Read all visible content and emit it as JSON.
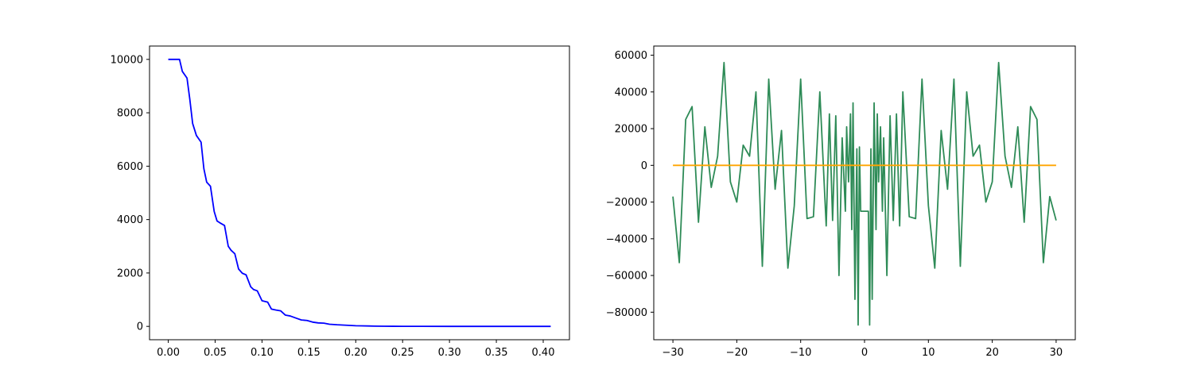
{
  "chart_data": [
    {
      "type": "line",
      "title": "",
      "xlabel": "",
      "ylabel": "",
      "xlim": [
        -0.02,
        0.428
      ],
      "ylim": [
        -500,
        10500
      ],
      "xticks": [
        0.0,
        0.05,
        0.1,
        0.15,
        0.2,
        0.25,
        0.3,
        0.35,
        0.4
      ],
      "xtick_labels": [
        "0.00",
        "0.05",
        "0.10",
        "0.15",
        "0.20",
        "0.25",
        "0.30",
        "0.35",
        "0.40"
      ],
      "yticks": [
        0,
        2000,
        4000,
        6000,
        8000,
        10000
      ],
      "ytick_labels": [
        "0",
        "2000",
        "4000",
        "6000",
        "8000",
        "10000"
      ],
      "grid": false,
      "series": [
        {
          "color": "#0000ff",
          "x": [
            0.0,
            0.012,
            0.015,
            0.02,
            0.023,
            0.026,
            0.03,
            0.035,
            0.038,
            0.041,
            0.045,
            0.049,
            0.052,
            0.055,
            0.06,
            0.064,
            0.067,
            0.071,
            0.075,
            0.079,
            0.083,
            0.088,
            0.091,
            0.095,
            0.1,
            0.106,
            0.11,
            0.115,
            0.12,
            0.125,
            0.13,
            0.137,
            0.142,
            0.148,
            0.154,
            0.16,
            0.166,
            0.172,
            0.18,
            0.186,
            0.194,
            0.2,
            0.206,
            0.214,
            0.22,
            0.23,
            0.24,
            0.25,
            0.27,
            0.3,
            0.35,
            0.408
          ],
          "y": [
            10000,
            10000,
            9550,
            9300,
            8500,
            7600,
            7150,
            6900,
            5900,
            5400,
            5250,
            4300,
            3950,
            3880,
            3780,
            3000,
            2850,
            2720,
            2150,
            1990,
            1930,
            1480,
            1380,
            1330,
            960,
            910,
            650,
            610,
            580,
            420,
            390,
            300,
            240,
            220,
            160,
            130,
            120,
            80,
            60,
            50,
            35,
            25,
            20,
            15,
            10,
            6,
            4,
            2,
            1,
            0,
            0,
            0
          ]
        }
      ]
    },
    {
      "type": "line",
      "title": "",
      "xlabel": "",
      "ylabel": "",
      "xlim": [
        -33,
        33
      ],
      "ylim": [
        -95000,
        65000
      ],
      "xticks": [
        -30,
        -20,
        -10,
        0,
        10,
        20,
        30
      ],
      "xtick_labels": [
        "−30",
        "−20",
        "−10",
        "0",
        "10",
        "20",
        "30"
      ],
      "yticks": [
        -80000,
        -60000,
        -40000,
        -20000,
        0,
        20000,
        40000,
        60000
      ],
      "ytick_labels": [
        "−80000",
        "−60000",
        "−40000",
        "−20000",
        "0",
        "20000",
        "40000",
        "60000"
      ],
      "grid": false,
      "series": [
        {
          "color": "#2e8b57",
          "x": [
            -30,
            -29,
            -28,
            -27,
            -26,
            -25,
            -24,
            -23,
            -22,
            -21,
            -20,
            -19,
            -18,
            -17,
            -16,
            -15,
            -14,
            -13,
            -12,
            -11,
            -10,
            -9,
            -8,
            -7,
            -6,
            -5.5,
            -5,
            -4.5,
            -4,
            -3.5,
            -3,
            -2.8,
            -2.5,
            -2.2,
            -2.0,
            -1.8,
            -1.5,
            -1.2,
            -1.0,
            -0.8,
            -0.6,
            0,
            0.6,
            0.8,
            1.0,
            1.2,
            1.5,
            1.8,
            2.0,
            2.2,
            2.5,
            2.8,
            3,
            3.5,
            4,
            4.5,
            5,
            5.5,
            6,
            7,
            8,
            9,
            10,
            11,
            12,
            13,
            14,
            15,
            16,
            17,
            18,
            19,
            20,
            21,
            22,
            23,
            24,
            25,
            26,
            27,
            28,
            29,
            30
          ],
          "y": [
            -17000,
            -53000,
            25000,
            32000,
            -31000,
            21000,
            -12000,
            5000,
            56000,
            -9000,
            -20000,
            11000,
            5000,
            40000,
            -55000,
            47000,
            -13000,
            19000,
            -56000,
            -22000,
            47000,
            -29000,
            -28000,
            40000,
            -33000,
            28000,
            -30000,
            27000,
            -60000,
            15000,
            -25000,
            21000,
            -9000,
            28000,
            -35000,
            34000,
            -73000,
            9000,
            -87000,
            10000,
            -25000,
            -25000,
            -25000,
            -87000,
            9000,
            -73000,
            34000,
            -35000,
            28000,
            -9000,
            21000,
            -25000,
            15000,
            -60000,
            27000,
            -30000,
            28000,
            -33000,
            40000,
            -28000,
            -29000,
            47000,
            -22000,
            -56000,
            19000,
            -13000,
            47000,
            -55000,
            40000,
            5000,
            11000,
            -20000,
            -9000,
            56000,
            5000,
            -12000,
            21000,
            -31000,
            32000,
            25000,
            -53000,
            -17000,
            -30000
          ]
        },
        {
          "color": "#ffa500",
          "x": [
            -30,
            30
          ],
          "y": [
            0,
            0
          ]
        }
      ]
    }
  ]
}
